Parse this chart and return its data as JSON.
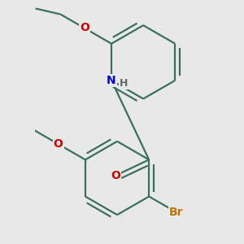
{
  "background_color": "#e8e8e8",
  "bond_color": "#3a7060",
  "bond_lw": 1.6,
  "dbo": 0.05,
  "O_color": "#cc0000",
  "N_color": "#0000cc",
  "Br_color": "#bb7700",
  "H_color": "#666666",
  "figsize": [
    3.0,
    3.0
  ],
  "dpi": 100,
  "xlim": [
    -0.3,
    1.5
  ],
  "ylim": [
    -0.15,
    2.35
  ]
}
